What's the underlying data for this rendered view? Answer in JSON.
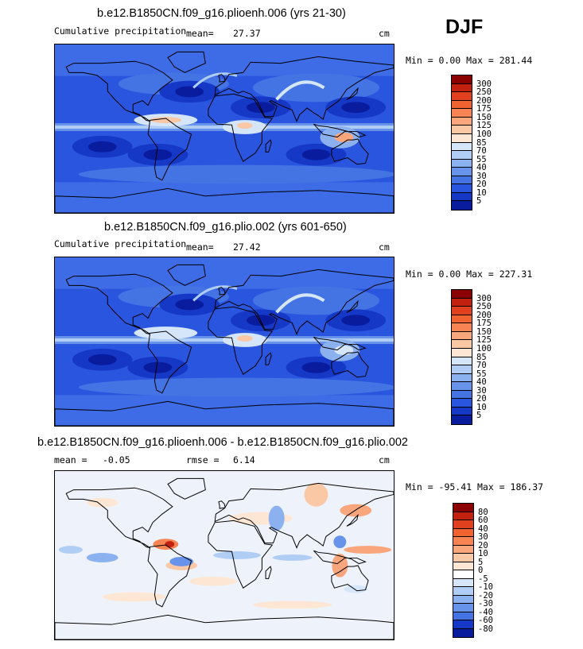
{
  "season": "DJF",
  "panels": [
    {
      "title": "b.e12.B1850CN.f09_g16.plioenh.006 (yrs 21-30)",
      "left_label": "Cumulative precipitation",
      "mean_label": "mean=",
      "mean_value": "27.37",
      "unit": "cm",
      "minmax": "Min =    0.00 Max = 281.44",
      "colorbar": {
        "labels": [
          "300",
          "250",
          "200",
          "175",
          "150",
          "125",
          "100",
          "85",
          "70",
          "55",
          "40",
          "30",
          "20",
          "10",
          "5"
        ],
        "colors": [
          "#8b0000",
          "#c3210f",
          "#e0401d",
          "#f0622f",
          "#f78452",
          "#f9a67c",
          "#fbc8a6",
          "#fde7d4",
          "#d6e6fa",
          "#b0cdf5",
          "#8cb1f0",
          "#6793ea",
          "#4474e4",
          "#2a55df",
          "#1538c6",
          "#0a1c9e"
        ]
      },
      "map_style": "precip_a"
    },
    {
      "title": "b.e12.B1850CN.f09_g16.plio.002 (yrs 601-650)",
      "left_label": "Cumulative precipitation",
      "mean_label": "mean=",
      "mean_value": "27.42",
      "unit": "cm",
      "minmax": "Min =    0.00 Max = 227.31",
      "colorbar": {
        "labels": [
          "300",
          "250",
          "200",
          "175",
          "150",
          "125",
          "100",
          "85",
          "70",
          "55",
          "40",
          "30",
          "20",
          "10",
          "5"
        ],
        "colors": [
          "#8b0000",
          "#c3210f",
          "#e0401d",
          "#f0622f",
          "#f78452",
          "#f9a67c",
          "#fbc8a6",
          "#fde7d4",
          "#d6e6fa",
          "#b0cdf5",
          "#8cb1f0",
          "#6793ea",
          "#4474e4",
          "#2a55df",
          "#1538c6",
          "#0a1c9e"
        ]
      },
      "map_style": "precip_b"
    },
    {
      "title": "b.e12.B1850CN.f09_g16.plioenh.006 - b.e12.B1850CN.f09_g16.plio.002",
      "left_label": "mean =",
      "mean_label": "",
      "mean_value": "-0.05",
      "rmse_label": "rmse =",
      "rmse_value": "6.14",
      "unit": "cm",
      "minmax": "Min = -95.41 Max = 186.37",
      "colorbar": {
        "labels": [
          "80",
          "60",
          "40",
          "30",
          "20",
          "10",
          "5",
          "0",
          "-5",
          "-10",
          "-20",
          "-30",
          "-40",
          "-60",
          "-80"
        ],
        "colors": [
          "#8b0000",
          "#c3210f",
          "#e0401d",
          "#f0622f",
          "#f78452",
          "#f9a67c",
          "#fbc8a6",
          "#fde7d4",
          "#ffffff",
          "#d6e6fa",
          "#b0cdf5",
          "#8cb1f0",
          "#6793ea",
          "#4474e4",
          "#1538c6",
          "#0a1c9e"
        ]
      },
      "map_style": "diff"
    }
  ]
}
